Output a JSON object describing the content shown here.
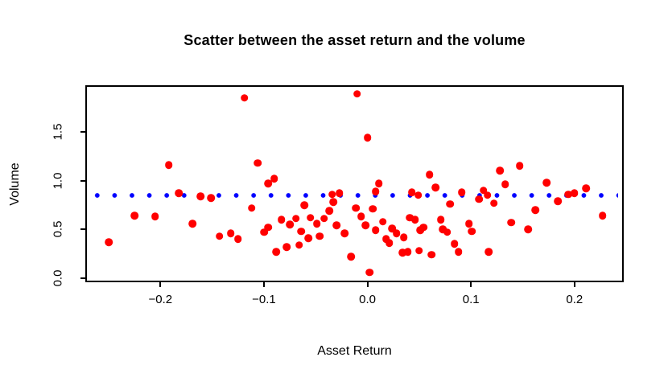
{
  "chart_data": {
    "type": "scatter",
    "title": "Scatter between the asset return and the volume",
    "xlabel": "Asset Return",
    "ylabel": "Volume",
    "xlim": [
      -0.271,
      0.246
    ],
    "ylim": [
      -0.026,
      1.962
    ],
    "x_ticks": [
      -0.2,
      -0.1,
      0.0,
      0.1,
      0.2
    ],
    "x_tick_labels": [
      "−0.2",
      "−0.1",
      "0.0",
      "0.1",
      "0.2"
    ],
    "y_ticks": [
      0.0,
      0.5,
      1.0,
      1.5
    ],
    "y_tick_labels": [
      "0.0",
      "0.5",
      "1.0",
      "1.5"
    ],
    "grid": false,
    "legend_position": "none",
    "point_color": "#ff0000",
    "reference_line": {
      "y": 0.85,
      "color": "#0000ff",
      "style": "dotted"
    },
    "series": [
      {
        "name": "volume vs asset return",
        "points": [
          [
            -0.25,
            0.37
          ],
          [
            -0.225,
            0.64
          ],
          [
            -0.205,
            0.63
          ],
          [
            -0.192,
            1.16
          ],
          [
            -0.182,
            0.87
          ],
          [
            -0.169,
            0.56
          ],
          [
            -0.161,
            0.84
          ],
          [
            -0.151,
            0.82
          ],
          [
            -0.143,
            0.43
          ],
          [
            -0.132,
            0.46
          ],
          [
            -0.125,
            0.4
          ],
          [
            -0.119,
            1.85
          ],
          [
            -0.112,
            0.72
          ],
          [
            -0.106,
            1.18
          ],
          [
            -0.1,
            0.47
          ],
          [
            -0.096,
            0.97
          ],
          [
            -0.096,
            0.52
          ],
          [
            -0.09,
            1.02
          ],
          [
            -0.088,
            0.27
          ],
          [
            -0.083,
            0.6
          ],
          [
            -0.078,
            0.32
          ],
          [
            -0.075,
            0.55
          ],
          [
            -0.069,
            0.61
          ],
          [
            -0.066,
            0.34
          ],
          [
            -0.064,
            0.48
          ],
          [
            -0.061,
            0.75
          ],
          [
            -0.057,
            0.41
          ],
          [
            -0.055,
            0.62
          ],
          [
            -0.049,
            0.56
          ],
          [
            -0.046,
            0.43
          ],
          [
            -0.042,
            0.61
          ],
          [
            -0.037,
            0.69
          ],
          [
            -0.034,
            0.86
          ],
          [
            -0.033,
            0.78
          ],
          [
            -0.03,
            0.54
          ],
          [
            -0.027,
            0.87
          ],
          [
            -0.022,
            0.46
          ],
          [
            -0.016,
            0.22
          ],
          [
            -0.011,
            0.72
          ],
          [
            -0.01,
            1.89
          ],
          [
            -0.006,
            0.63
          ],
          [
            -0.002,
            0.54
          ],
          [
            0.0,
            1.44
          ],
          [
            0.002,
            0.06
          ],
          [
            0.005,
            0.71
          ],
          [
            0.008,
            0.89
          ],
          [
            0.008,
            0.49
          ],
          [
            0.011,
            0.97
          ],
          [
            0.015,
            0.58
          ],
          [
            0.018,
            0.4
          ],
          [
            0.021,
            0.36
          ],
          [
            0.024,
            0.51
          ],
          [
            0.028,
            0.46
          ],
          [
            0.034,
            0.26
          ],
          [
            0.035,
            0.42
          ],
          [
            0.039,
            0.27
          ],
          [
            0.041,
            0.62
          ],
          [
            0.043,
            0.88
          ],
          [
            0.046,
            0.6
          ],
          [
            0.049,
            0.85
          ],
          [
            0.05,
            0.28
          ],
          [
            0.051,
            0.49
          ],
          [
            0.054,
            0.52
          ],
          [
            0.06,
            1.06
          ],
          [
            0.062,
            0.24
          ],
          [
            0.066,
            0.93
          ],
          [
            0.071,
            0.6
          ],
          [
            0.073,
            0.5
          ],
          [
            0.077,
            0.47
          ],
          [
            0.08,
            0.76
          ],
          [
            0.084,
            0.35
          ],
          [
            0.088,
            0.27
          ],
          [
            0.091,
            0.88
          ],
          [
            0.098,
            0.56
          ],
          [
            0.101,
            0.48
          ],
          [
            0.108,
            0.81
          ],
          [
            0.112,
            0.9
          ],
          [
            0.116,
            0.85
          ],
          [
            0.117,
            0.27
          ],
          [
            0.122,
            0.77
          ],
          [
            0.128,
            1.1
          ],
          [
            0.133,
            0.96
          ],
          [
            0.139,
            0.57
          ],
          [
            0.147,
            1.15
          ],
          [
            0.155,
            0.5
          ],
          [
            0.162,
            0.7
          ],
          [
            0.173,
            0.98
          ],
          [
            0.184,
            0.79
          ],
          [
            0.194,
            0.86
          ],
          [
            0.2,
            0.87
          ],
          [
            0.211,
            0.92
          ],
          [
            0.227,
            0.64
          ]
        ]
      }
    ]
  },
  "colors": {
    "background": "#ffffff",
    "axis": "#000000",
    "text": "#000000"
  }
}
